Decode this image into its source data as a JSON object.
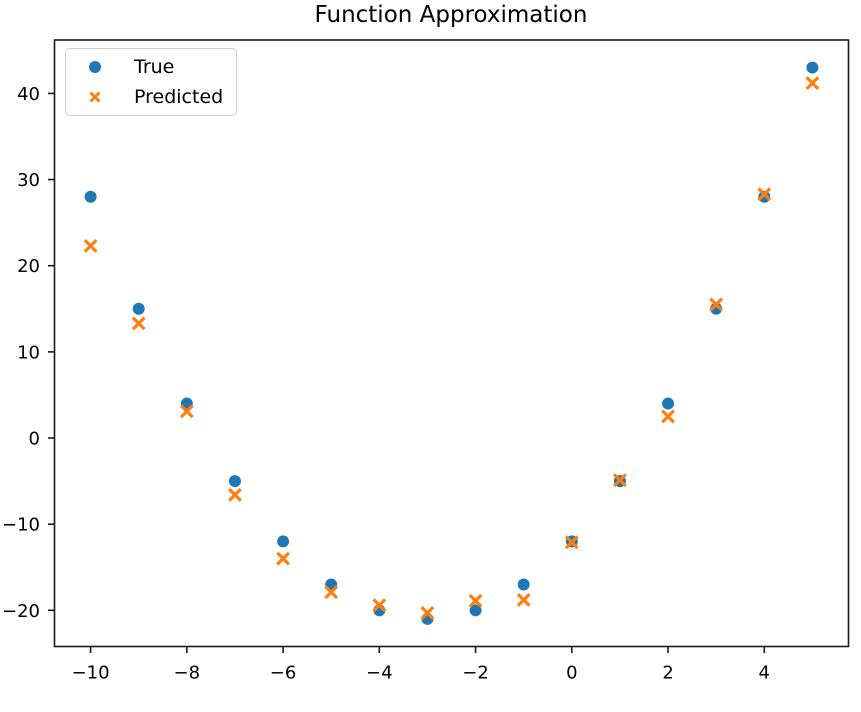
{
  "figure": {
    "background": "#ffffff"
  },
  "colors": {
    "axis": "#1a1a1a",
    "text": "#000000",
    "legend_border": "#cccccc",
    "true_series": "#1f77b4",
    "predicted_series": "#ff7f0e"
  },
  "chart_data": {
    "type": "scatter",
    "title": "Function Approximation",
    "xlabel": "",
    "ylabel": "",
    "grid": false,
    "legend_position": "upper left",
    "xlim": [
      -10.75,
      5.75
    ],
    "ylim": [
      -24.2,
      46.2
    ],
    "x_ticks": [
      -10,
      -8,
      -6,
      -4,
      -2,
      0,
      2,
      4
    ],
    "x_tick_labels": [
      "−10",
      "−8",
      "−6",
      "−4",
      "−2",
      "0",
      "2",
      "4"
    ],
    "y_ticks": [
      -20,
      -10,
      0,
      10,
      20,
      30,
      40
    ],
    "y_tick_labels": [
      "−20",
      "−10",
      "0",
      "10",
      "20",
      "30",
      "40"
    ],
    "x": [
      -10,
      -9,
      -8,
      -7,
      -6,
      -5,
      -4,
      -3,
      -2,
      -1,
      0,
      1,
      2,
      3,
      4,
      5
    ],
    "series": [
      {
        "name": "True",
        "marker": "circle",
        "color": "#1f77b4",
        "values": [
          28,
          15,
          4,
          -5,
          -12,
          -17,
          -20,
          -21,
          -20,
          -17,
          -12,
          -5,
          4,
          15,
          28,
          43
        ]
      },
      {
        "name": "Predicted",
        "marker": "x",
        "color": "#ff7f0e",
        "values": [
          22.3,
          13.3,
          3.1,
          -6.6,
          -14.0,
          -17.9,
          -19.4,
          -20.3,
          -18.9,
          -18.8,
          -12.1,
          -4.9,
          2.5,
          15.5,
          28.3,
          41.2
        ]
      }
    ]
  }
}
